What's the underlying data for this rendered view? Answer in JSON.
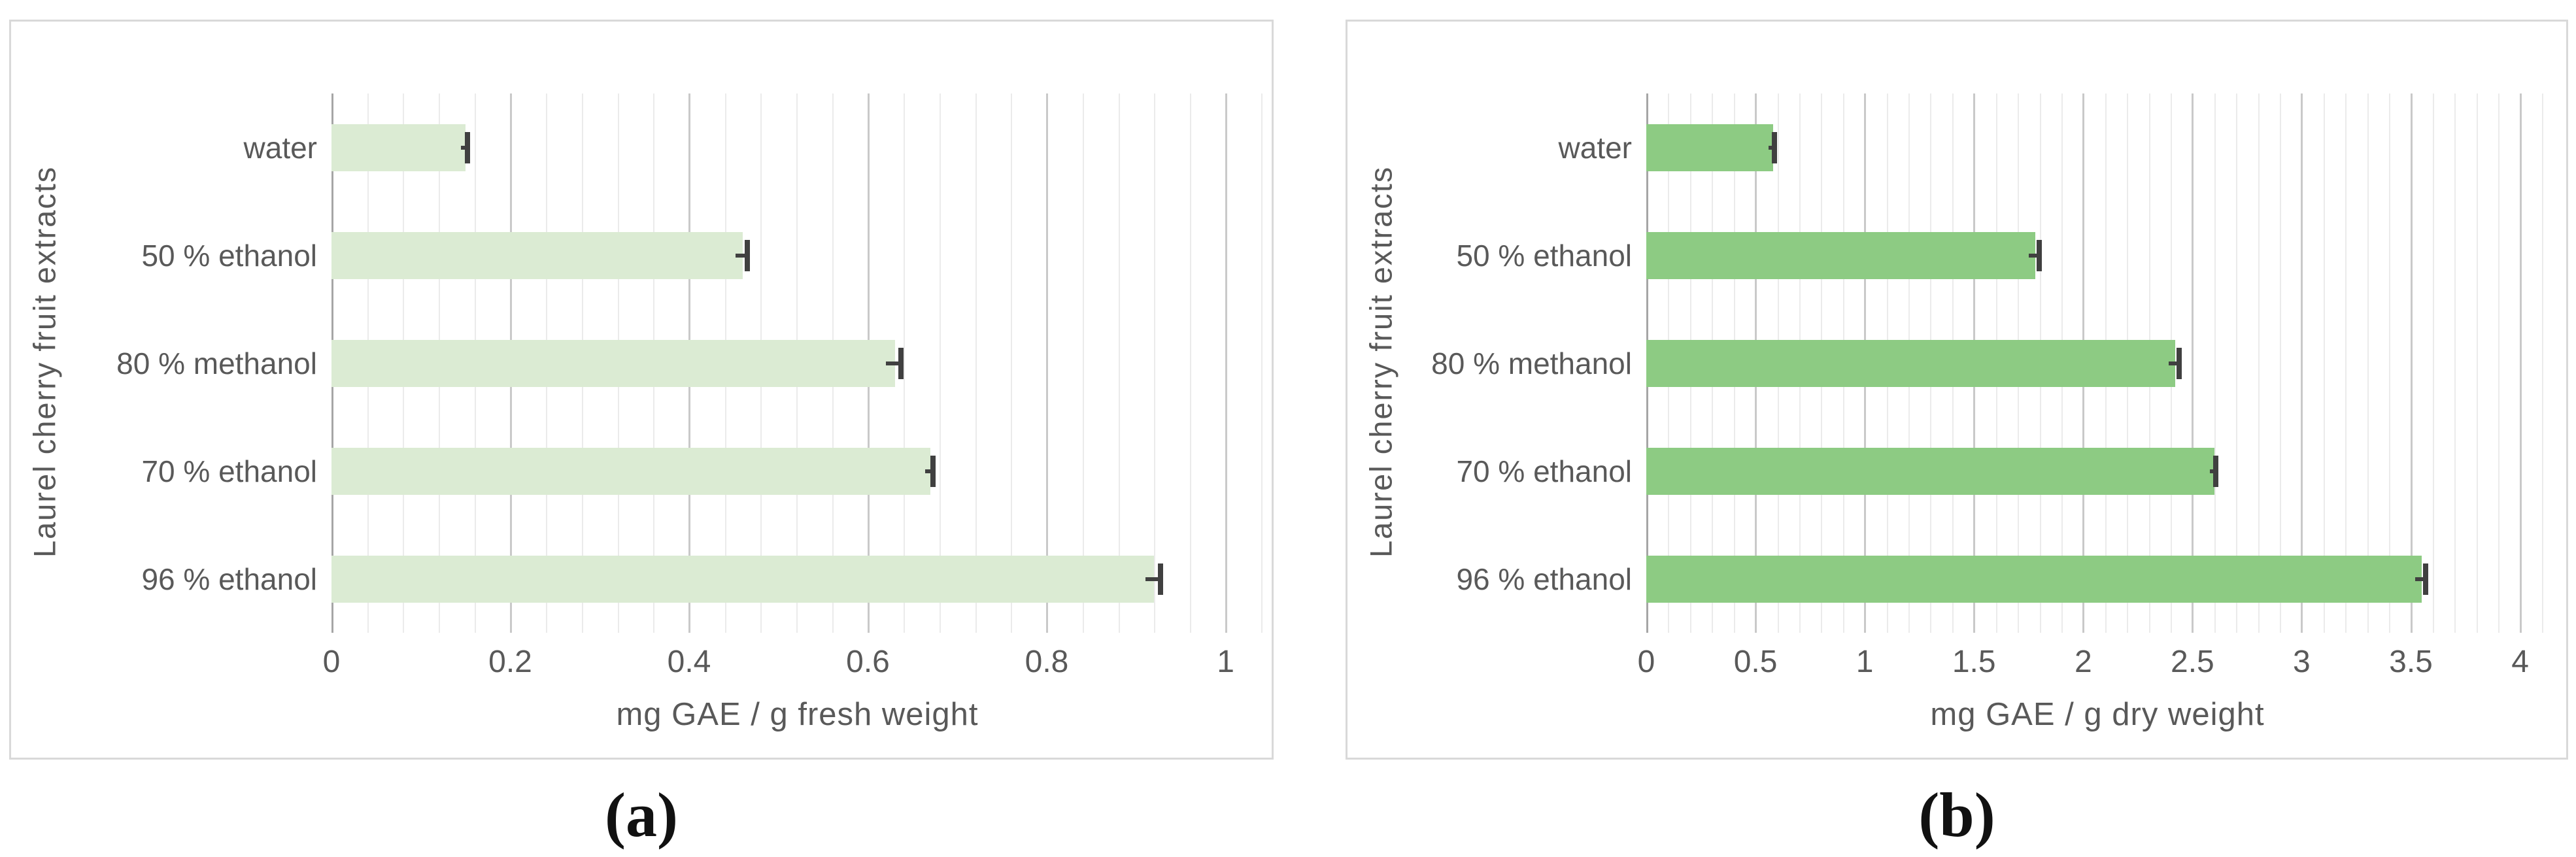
{
  "theme": {
    "text": "#595959",
    "caption_text": "#111111",
    "panel_border": "#d9d9d9",
    "grid_minor": "#ebebeb",
    "grid_major": "#c9c9c9",
    "axis_line": "#a6a6a6",
    "error_bar": "#404040"
  },
  "chart_data": [
    {
      "id": "a",
      "type": "bar",
      "orientation": "horizontal",
      "caption": "(a)",
      "ylabel": "Laurel cherry fruit extracts",
      "xlabel": "mg GAE / g fresh weight",
      "categories": [
        "water",
        "50 % ethanol",
        "80 % methanol",
        "70 % ethanol",
        "96 % ethanol"
      ],
      "values": [
        0.15,
        0.46,
        0.63,
        0.67,
        0.92
      ],
      "errors": [
        0.005,
        0.008,
        0.01,
        0.006,
        0.01
      ],
      "bar_color": "#dbebd3",
      "xlim": [
        0,
        1
      ],
      "x_max_render": 1.042,
      "xticks": [
        0,
        0.2,
        0.4,
        0.6,
        0.8,
        1
      ],
      "xtick_labels": [
        "0",
        "0.2",
        "0.4",
        "0.6",
        "0.8",
        "1"
      ],
      "major_step": 0.2,
      "minor_step": 0.04,
      "grid": true,
      "legend": "none"
    },
    {
      "id": "b",
      "type": "bar",
      "orientation": "horizontal",
      "caption": "(b)",
      "ylabel": "Laurel cherry fruit extracts",
      "xlabel": "mg GAE / g dry weight",
      "categories": [
        "water",
        "50 % ethanol",
        "80 % methanol",
        "70 % ethanol",
        "96 % ethanol"
      ],
      "values": [
        0.58,
        1.78,
        2.42,
        2.6,
        3.55
      ],
      "errors": [
        0.02,
        0.03,
        0.03,
        0.02,
        0.03
      ],
      "bar_color": "#8dcb83",
      "xlim": [
        0,
        4
      ],
      "x_max_render": 4.13,
      "xticks": [
        0,
        0.5,
        1,
        1.5,
        2,
        2.5,
        3,
        3.5,
        4
      ],
      "xtick_labels": [
        "0",
        "0.5",
        "1",
        "1.5",
        "2",
        "2.5",
        "3",
        "3.5",
        "4"
      ],
      "major_step": 0.5,
      "minor_step": 0.1,
      "grid": true,
      "legend": "none"
    }
  ]
}
